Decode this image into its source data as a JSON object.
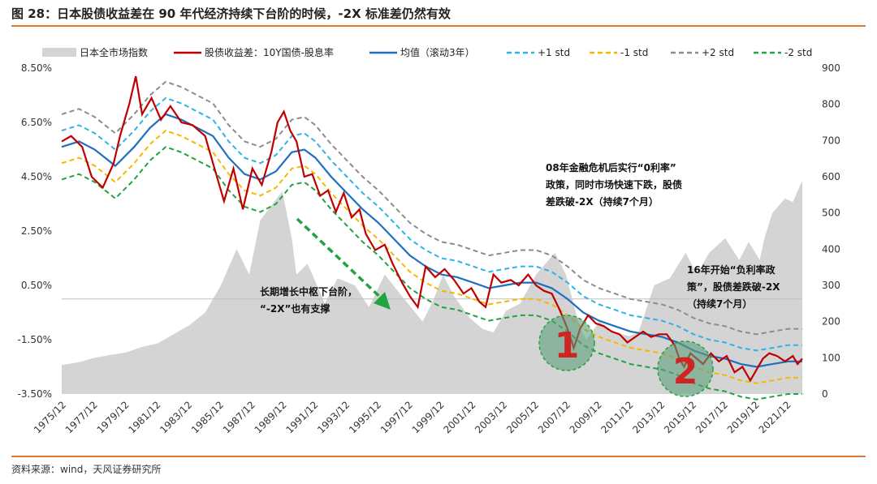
{
  "header": {
    "title": "图 28：日本股债收益差在 90 年代经济持续下台阶的时候，-2X 标准差仍然有效"
  },
  "footer": {
    "source": "资料来源：wind，天风证券研究所"
  },
  "colors": {
    "accent": "#e07a2e",
    "area": "#d4d4d4",
    "spread": "#c00000",
    "mean": "#1f6fc0",
    "plus1": "#2cb3e8",
    "minus1": "#f5b800",
    "plus2": "#8c8c8c",
    "minus2": "#21a33f",
    "circle_fill": "#5e9e7a"
  },
  "chart_data": {
    "type": "line",
    "legend_position": "top",
    "grid": false,
    "x": [
      "1975/12",
      "1977/12",
      "1979/12",
      "1981/12",
      "1983/12",
      "1985/12",
      "1987/12",
      "1989/12",
      "1991/12",
      "1993/12",
      "1995/12",
      "1997/12",
      "1999/12",
      "2001/12",
      "2003/12",
      "2005/12",
      "2007/12",
      "2009/12",
      "2011/12",
      "2013/12",
      "2015/12",
      "2017/12",
      "2019/12",
      "2021/12"
    ],
    "x_range": [
      1975.9,
      2022.9
    ],
    "y_left": {
      "ticks": [
        "8.50%",
        "6.50%",
        "4.50%",
        "2.50%",
        "0.50%",
        "-1.50%",
        "-3.50%"
      ],
      "min": -3.5,
      "max": 8.5
    },
    "y_right": {
      "ticks": [
        "900",
        "800",
        "700",
        "600",
        "500",
        "400",
        "300",
        "200",
        "100",
        "0"
      ],
      "min": 0,
      "max": 900
    },
    "series": [
      {
        "name": "日本全市场指数",
        "type": "area",
        "axis": "right",
        "color_key": "area",
        "points": [
          [
            1975.9,
            80
          ],
          [
            1977,
            88
          ],
          [
            1978,
            100
          ],
          [
            1979,
            108
          ],
          [
            1980,
            115
          ],
          [
            1981,
            130
          ],
          [
            1982,
            140
          ],
          [
            1983,
            165
          ],
          [
            1984,
            190
          ],
          [
            1985,
            225
          ],
          [
            1986,
            300
          ],
          [
            1987,
            400
          ],
          [
            1987.8,
            330
          ],
          [
            1988.5,
            480
          ],
          [
            1989.9,
            560
          ],
          [
            1990.5,
            430
          ],
          [
            1990.8,
            330
          ],
          [
            1991.5,
            360
          ],
          [
            1992.6,
            250
          ],
          [
            1993.4,
            320
          ],
          [
            1994.5,
            300
          ],
          [
            1995.4,
            240
          ],
          [
            1996.4,
            330
          ],
          [
            1997.5,
            270
          ],
          [
            1998.8,
            200
          ],
          [
            1999.5,
            260
          ],
          [
            2000.1,
            330
          ],
          [
            2000.8,
            270
          ],
          [
            2001.8,
            210
          ],
          [
            2002.6,
            180
          ],
          [
            2003.3,
            170
          ],
          [
            2004.1,
            230
          ],
          [
            2005,
            250
          ],
          [
            2006,
            330
          ],
          [
            2007.2,
            390
          ],
          [
            2007.9,
            330
          ],
          [
            2008.8,
            180
          ],
          [
            2009.2,
            150
          ],
          [
            2010,
            200
          ],
          [
            2011,
            170
          ],
          [
            2011.9,
            160
          ],
          [
            2012.5,
            170
          ],
          [
            2013.5,
            300
          ],
          [
            2014.5,
            320
          ],
          [
            2015.5,
            390
          ],
          [
            2016.2,
            330
          ],
          [
            2017,
            390
          ],
          [
            2018,
            430
          ],
          [
            2018.9,
            370
          ],
          [
            2019.5,
            420
          ],
          [
            2020.2,
            370
          ],
          [
            2020.5,
            430
          ],
          [
            2021,
            500
          ],
          [
            2021.8,
            540
          ],
          [
            2022.3,
            530
          ],
          [
            2022.9,
            590
          ]
        ]
      },
      {
        "name": "股债收益差：10Y国债-股息率",
        "type": "line",
        "axis": "left",
        "color_key": "spread",
        "points": [
          [
            1975.9,
            5.8
          ],
          [
            1976.5,
            6.0
          ],
          [
            1977.2,
            5.6
          ],
          [
            1977.8,
            4.5
          ],
          [
            1978.5,
            4.1
          ],
          [
            1979.2,
            5.0
          ],
          [
            1979.6,
            6.0
          ],
          [
            1980.2,
            7.2
          ],
          [
            1980.6,
            8.2
          ],
          [
            1981.0,
            6.8
          ],
          [
            1981.6,
            7.4
          ],
          [
            1982.2,
            6.6
          ],
          [
            1982.8,
            7.1
          ],
          [
            1983.5,
            6.5
          ],
          [
            1984.2,
            6.4
          ],
          [
            1985,
            6.0
          ],
          [
            1985.6,
            4.8
          ],
          [
            1986.2,
            3.6
          ],
          [
            1986.8,
            4.8
          ],
          [
            1987.4,
            3.3
          ],
          [
            1988,
            4.8
          ],
          [
            1988.6,
            4.2
          ],
          [
            1989.2,
            5.4
          ],
          [
            1989.6,
            6.5
          ],
          [
            1990.0,
            6.9
          ],
          [
            1990.4,
            6.2
          ],
          [
            1990.8,
            5.8
          ],
          [
            1991.3,
            4.5
          ],
          [
            1991.8,
            4.6
          ],
          [
            1992.3,
            3.8
          ],
          [
            1992.8,
            4.0
          ],
          [
            1993.3,
            3.2
          ],
          [
            1993.8,
            3.9
          ],
          [
            1994.3,
            3.0
          ],
          [
            1994.8,
            3.3
          ],
          [
            1995.2,
            2.4
          ],
          [
            1995.8,
            1.8
          ],
          [
            1996.4,
            2.0
          ],
          [
            1996.9,
            1.3
          ],
          [
            1997.5,
            0.6
          ],
          [
            1998.0,
            0.1
          ],
          [
            1998.5,
            -0.3
          ],
          [
            1999.0,
            1.2
          ],
          [
            1999.6,
            0.8
          ],
          [
            2000.2,
            1.1
          ],
          [
            2000.8,
            0.7
          ],
          [
            2001.4,
            0.2
          ],
          [
            2001.9,
            0.4
          ],
          [
            2002.4,
            -0.1
          ],
          [
            2002.8,
            -0.3
          ],
          [
            2003.3,
            0.9
          ],
          [
            2003.8,
            0.6
          ],
          [
            2004.4,
            0.7
          ],
          [
            2004.9,
            0.5
          ],
          [
            2005.5,
            0.9
          ],
          [
            2006,
            0.5
          ],
          [
            2006.5,
            0.3
          ],
          [
            2007,
            0.2
          ],
          [
            2007.5,
            -0.4
          ],
          [
            2008.0,
            -1.1
          ],
          [
            2008.4,
            -1.8
          ],
          [
            2008.8,
            -1.1
          ],
          [
            2009.3,
            -0.6
          ],
          [
            2009.8,
            -0.9
          ],
          [
            2010.3,
            -1.0
          ],
          [
            2010.8,
            -1.2
          ],
          [
            2011.3,
            -1.3
          ],
          [
            2011.8,
            -1.6
          ],
          [
            2012.3,
            -1.4
          ],
          [
            2012.8,
            -1.2
          ],
          [
            2013.3,
            -1.4
          ],
          [
            2013.8,
            -1.3
          ],
          [
            2014.3,
            -1.3
          ],
          [
            2014.8,
            -1.7
          ],
          [
            2015.1,
            -2.2
          ],
          [
            2015.4,
            -2.5
          ],
          [
            2015.8,
            -2.0
          ],
          [
            2016.2,
            -2.2
          ],
          [
            2016.6,
            -2.4
          ],
          [
            2017.1,
            -2.0
          ],
          [
            2017.6,
            -2.3
          ],
          [
            2018.1,
            -2.1
          ],
          [
            2018.6,
            -2.7
          ],
          [
            2019.1,
            -2.5
          ],
          [
            2019.6,
            -3.0
          ],
          [
            2020.0,
            -2.6
          ],
          [
            2020.4,
            -2.2
          ],
          [
            2020.8,
            -2.0
          ],
          [
            2021.3,
            -2.1
          ],
          [
            2021.8,
            -2.3
          ],
          [
            2022.3,
            -2.1
          ],
          [
            2022.6,
            -2.4
          ],
          [
            2022.9,
            -2.2
          ]
        ]
      },
      {
        "name": "均值（滚动3年）",
        "type": "line",
        "axis": "left",
        "color_key": "mean",
        "points": [
          [
            1975.9,
            5.6
          ],
          [
            1977,
            5.8
          ],
          [
            1978,
            5.5
          ],
          [
            1979.3,
            4.9
          ],
          [
            1980.5,
            5.6
          ],
          [
            1981.5,
            6.3
          ],
          [
            1982.5,
            6.8
          ],
          [
            1983.5,
            6.6
          ],
          [
            1984.5,
            6.3
          ],
          [
            1985.5,
            6.0
          ],
          [
            1986.5,
            5.2
          ],
          [
            1987.5,
            4.6
          ],
          [
            1988.5,
            4.4
          ],
          [
            1989.5,
            4.7
          ],
          [
            1990.5,
            5.4
          ],
          [
            1991.3,
            5.5
          ],
          [
            1992,
            5.2
          ],
          [
            1993,
            4.5
          ],
          [
            1994,
            3.9
          ],
          [
            1995,
            3.3
          ],
          [
            1996,
            2.8
          ],
          [
            1997,
            2.2
          ],
          [
            1998,
            1.6
          ],
          [
            1999,
            1.2
          ],
          [
            2000,
            0.9
          ],
          [
            2001,
            0.8
          ],
          [
            2002,
            0.6
          ],
          [
            2003,
            0.4
          ],
          [
            2004,
            0.5
          ],
          [
            2005,
            0.6
          ],
          [
            2006,
            0.6
          ],
          [
            2007,
            0.4
          ],
          [
            2008,
            0.0
          ],
          [
            2009,
            -0.5
          ],
          [
            2010,
            -0.8
          ],
          [
            2011,
            -1.0
          ],
          [
            2012,
            -1.2
          ],
          [
            2013,
            -1.3
          ],
          [
            2014,
            -1.4
          ],
          [
            2015,
            -1.6
          ],
          [
            2016,
            -1.9
          ],
          [
            2017,
            -2.1
          ],
          [
            2018,
            -2.2
          ],
          [
            2019,
            -2.4
          ],
          [
            2020,
            -2.5
          ],
          [
            2021,
            -2.4
          ],
          [
            2022,
            -2.3
          ],
          [
            2022.9,
            -2.3
          ]
        ]
      },
      {
        "name": "+1 std",
        "type": "line",
        "axis": "left",
        "color_key": "plus1",
        "dash": true,
        "offset_from_mean": 0.6
      },
      {
        "name": "-1 std",
        "type": "line",
        "axis": "left",
        "color_key": "minus1",
        "dash": true,
        "offset_from_mean": -0.6
      },
      {
        "name": "+2 std",
        "type": "line",
        "axis": "left",
        "color_key": "plus2",
        "dash": true,
        "offset_from_mean": 1.2
      },
      {
        "name": "-2 std",
        "type": "line",
        "axis": "left",
        "color_key": "minus2",
        "dash": true,
        "offset_from_mean": -1.2
      }
    ],
    "annotations": [
      {
        "lines": [
          "08年金融危机后实行“0利率”",
          "政策，同时市场快速下跌，股债",
          "差跌破-2X（持续7个月）"
        ]
      },
      {
        "lines": [
          "16年开始“负利率政",
          "策”，股债差跌破-2X",
          "（持续7个月）"
        ]
      },
      {
        "lines": [
          "长期增长中枢下台阶，",
          "“-2X”也有支撑"
        ]
      }
    ],
    "markers": [
      {
        "label": "1",
        "x": 2008.6,
        "y": -1.6
      },
      {
        "label": "2",
        "x": 2015.6,
        "y": -2.5
      }
    ]
  }
}
